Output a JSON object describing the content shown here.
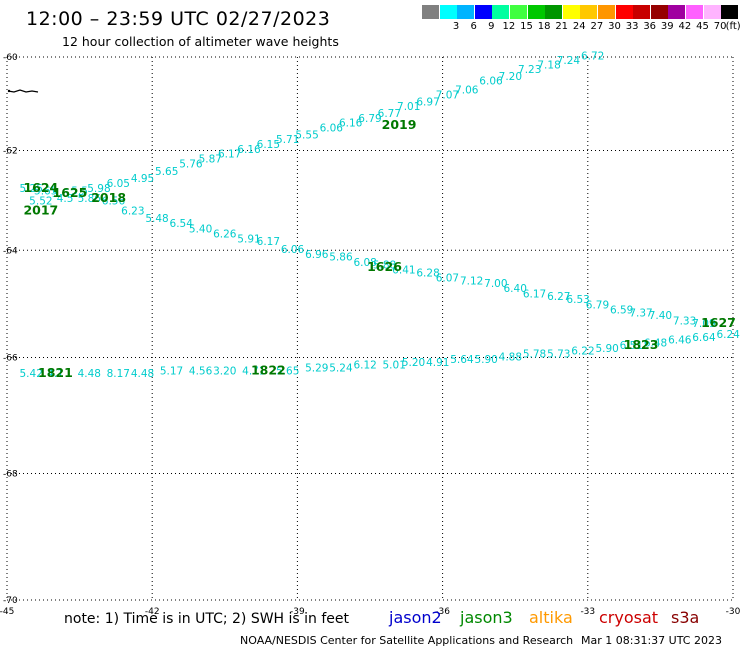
{
  "header": {
    "title": "12:00 – 23:59 UTC 02/27/2023",
    "subtitle": "12 hour collection of altimeter wave heights"
  },
  "legend": {
    "unit": "(ft)",
    "swatches": [
      {
        "label": "",
        "color": "#808080"
      },
      {
        "label": "3",
        "color": "#00ffff"
      },
      {
        "label": "6",
        "color": "#00b4ff"
      },
      {
        "label": "9",
        "color": "#0000ff"
      },
      {
        "label": "12",
        "color": "#00ffa0"
      },
      {
        "label": "15",
        "color": "#40ff40"
      },
      {
        "label": "18",
        "color": "#00c800"
      },
      {
        "label": "21",
        "color": "#009600"
      },
      {
        "label": "24",
        "color": "#ffff00"
      },
      {
        "label": "27",
        "color": "#ffc800"
      },
      {
        "label": "30",
        "color": "#ff9600"
      },
      {
        "label": "33",
        "color": "#ff0000"
      },
      {
        "label": "36",
        "color": "#c80000"
      },
      {
        "label": "39",
        "color": "#960000"
      },
      {
        "label": "42",
        "color": "#a000a0"
      },
      {
        "label": "45",
        "color": "#ff60ff"
      },
      {
        "label": "70",
        "color": "#ffb4ff"
      },
      {
        "label": "",
        "color": "#000000"
      }
    ]
  },
  "map": {
    "lat_labels": [
      "-60",
      "-62",
      "-64",
      "-66",
      "-68",
      "-70"
    ],
    "lon_labels": [
      "-45",
      "-42",
      "-39",
      "-36",
      "-33",
      "-30"
    ],
    "value_color": "#00cccc",
    "time_color": "#007800",
    "tracks": [
      {
        "name": "track-2019",
        "points": [
          {
            "lon": -44.5,
            "lat": -62.85,
            "swh": "5.25"
          },
          {
            "lon": -44.2,
            "lat": -62.9,
            "swh": "5.65"
          },
          {
            "lon": -43.9,
            "lat": -62.95,
            "swh": "5.6"
          },
          {
            "lon": -43.5,
            "lat": -62.9,
            "swh": "5.5"
          },
          {
            "lon": -43.1,
            "lat": -62.85,
            "swh": "5.98"
          },
          {
            "lon": -42.7,
            "lat": -62.75,
            "swh": "6.05"
          },
          {
            "lon": -42.2,
            "lat": -62.65,
            "swh": "4.95"
          },
          {
            "lon": -41.7,
            "lat": -62.5,
            "swh": "5.65"
          },
          {
            "lon": -41.2,
            "lat": -62.35,
            "swh": "5.76"
          },
          {
            "lon": -40.8,
            "lat": -62.25,
            "swh": "5.87"
          },
          {
            "lon": -40.4,
            "lat": -62.15,
            "swh": "6.17"
          },
          {
            "lon": -40.0,
            "lat": -62.05,
            "swh": "6.16"
          },
          {
            "lon": -39.6,
            "lat": -61.95,
            "swh": "6.15"
          },
          {
            "lon": -39.2,
            "lat": -61.85,
            "swh": "5.71"
          },
          {
            "lon": -38.8,
            "lat": -61.75,
            "swh": "5.55"
          },
          {
            "lon": -38.3,
            "lat": -61.6,
            "swh": "6.06"
          },
          {
            "lon": -37.9,
            "lat": -61.5,
            "swh": "6.16"
          },
          {
            "lon": -37.5,
            "lat": -61.4,
            "swh": "6.79"
          },
          {
            "lon": -37.1,
            "lat": -61.3,
            "swh": "6.77"
          },
          {
            "lon": -36.7,
            "lat": -61.15,
            "swh": "7.01"
          },
          {
            "lon": -36.3,
            "lat": -61.05,
            "swh": "6.97"
          },
          {
            "lon": -35.9,
            "lat": -60.9,
            "swh": "7.07"
          },
          {
            "lon": -35.5,
            "lat": -60.8,
            "swh": "7.06"
          },
          {
            "lon": -35.0,
            "lat": -60.6,
            "swh": "6.06"
          },
          {
            "lon": -34.6,
            "lat": -60.5,
            "swh": "7.20"
          },
          {
            "lon": -34.2,
            "lat": -60.35,
            "swh": "7.23"
          },
          {
            "lon": -33.8,
            "lat": -60.25,
            "swh": "7.18"
          },
          {
            "lon": -33.4,
            "lat": -60.15,
            "swh": "7.24"
          },
          {
            "lon": -32.9,
            "lat": -60.05,
            "swh": "6.72"
          }
        ],
        "times": [
          {
            "lon": -36.9,
            "lat": -61.55,
            "label": "2019"
          }
        ]
      },
      {
        "name": "track-2018",
        "points": [
          {
            "lon": -44.3,
            "lat": -63.1,
            "swh": "5.52"
          },
          {
            "lon": -43.8,
            "lat": -63.05,
            "swh": "4.5"
          },
          {
            "lon": -43.3,
            "lat": -63.05,
            "swh": "5.86"
          },
          {
            "lon": -42.8,
            "lat": -63.1,
            "swh": "6.56"
          },
          {
            "lon": -42.4,
            "lat": -63.3,
            "swh": "6.23"
          },
          {
            "lon": -41.9,
            "lat": -63.45,
            "swh": "5.48"
          },
          {
            "lon": -41.4,
            "lat": -63.55,
            "swh": "6.54"
          },
          {
            "lon": -41.0,
            "lat": -63.65,
            "swh": "5.40"
          },
          {
            "lon": -40.5,
            "lat": -63.75,
            "swh": "6.26"
          },
          {
            "lon": -40.0,
            "lat": -63.85,
            "swh": "5.91"
          },
          {
            "lon": -39.6,
            "lat": -63.9,
            "swh": "6.17"
          },
          {
            "lon": -39.1,
            "lat": -64.05,
            "swh": "6.06"
          },
          {
            "lon": -38.6,
            "lat": -64.15,
            "swh": "6.96"
          },
          {
            "lon": -38.1,
            "lat": -64.2,
            "swh": "5.86"
          },
          {
            "lon": -37.6,
            "lat": -64.3,
            "swh": "6.08"
          },
          {
            "lon": -37.2,
            "lat": -64.35,
            "swh": "5.88"
          },
          {
            "lon": -36.8,
            "lat": -64.45,
            "swh": "6.41"
          },
          {
            "lon": -36.3,
            "lat": -64.5,
            "swh": "6.28"
          },
          {
            "lon": -35.9,
            "lat": -64.6,
            "swh": "6.07"
          },
          {
            "lon": -35.4,
            "lat": -64.65,
            "swh": "7.12"
          },
          {
            "lon": -34.9,
            "lat": -64.7,
            "swh": "7.00"
          },
          {
            "lon": -34.5,
            "lat": -64.8,
            "swh": "6.40"
          },
          {
            "lon": -34.1,
            "lat": -64.9,
            "swh": "6.17"
          },
          {
            "lon": -33.6,
            "lat": -64.95,
            "swh": "6.27"
          },
          {
            "lon": -33.2,
            "lat": -65.0,
            "swh": "6.53"
          },
          {
            "lon": -32.8,
            "lat": -65.1,
            "swh": "6.79"
          },
          {
            "lon": -32.3,
            "lat": -65.2,
            "swh": "6.59"
          },
          {
            "lon": -31.9,
            "lat": -65.25,
            "swh": "7.37"
          },
          {
            "lon": -31.5,
            "lat": -65.3,
            "swh": "7.40"
          },
          {
            "lon": -31.0,
            "lat": -65.4,
            "swh": "7.33"
          },
          {
            "lon": -30.6,
            "lat": -65.45,
            "swh": "7.09"
          }
        ],
        "times": [
          {
            "lon": -44.3,
            "lat": -62.85,
            "label": "1624"
          },
          {
            "lon": -43.7,
            "lat": -62.95,
            "label": "1625"
          },
          {
            "lon": -42.9,
            "lat": -63.05,
            "label": "2018"
          },
          {
            "lon": -44.3,
            "lat": -63.3,
            "label": "2017"
          },
          {
            "lon": -37.2,
            "lat": -64.4,
            "label": "1626"
          },
          {
            "lon": -30.3,
            "lat": -65.45,
            "label": "1627"
          }
        ]
      },
      {
        "name": "track-1822",
        "points": [
          {
            "lon": -44.5,
            "lat": -66.35,
            "swh": "5.42"
          },
          {
            "lon": -44.0,
            "lat": -66.35,
            "swh": "4.1"
          },
          {
            "lon": -43.3,
            "lat": -66.35,
            "swh": "4.48"
          },
          {
            "lon": -42.7,
            "lat": -66.35,
            "swh": "8.17"
          },
          {
            "lon": -42.2,
            "lat": -66.35,
            "swh": "4.48"
          },
          {
            "lon": -41.6,
            "lat": -66.3,
            "swh": "5.17"
          },
          {
            "lon": -41.0,
            "lat": -66.3,
            "swh": "4.56"
          },
          {
            "lon": -40.5,
            "lat": -66.3,
            "swh": "3.20"
          },
          {
            "lon": -39.9,
            "lat": -66.3,
            "swh": "4.71"
          },
          {
            "lon": -39.2,
            "lat": -66.3,
            "swh": "5.65"
          },
          {
            "lon": -38.6,
            "lat": -66.25,
            "swh": "5.29"
          },
          {
            "lon": -38.1,
            "lat": -66.25,
            "swh": "5.24"
          },
          {
            "lon": -37.6,
            "lat": -66.2,
            "swh": "6.12"
          },
          {
            "lon": -37.0,
            "lat": -66.2,
            "swh": "5.01"
          },
          {
            "lon": -36.6,
            "lat": -66.15,
            "swh": "5.20"
          },
          {
            "lon": -36.1,
            "lat": -66.15,
            "swh": "4.91"
          },
          {
            "lon": -35.6,
            "lat": -66.1,
            "swh": "5.64"
          },
          {
            "lon": -35.1,
            "lat": -66.1,
            "swh": "5.90"
          },
          {
            "lon": -34.6,
            "lat": -66.05,
            "swh": "4.88"
          },
          {
            "lon": -34.1,
            "lat": -66.0,
            "swh": "5.78"
          },
          {
            "lon": -33.6,
            "lat": -66.0,
            "swh": "5.73"
          },
          {
            "lon": -33.1,
            "lat": -65.95,
            "swh": "6.22"
          },
          {
            "lon": -32.6,
            "lat": -65.9,
            "swh": "5.90"
          },
          {
            "lon": -32.1,
            "lat": -65.85,
            "swh": "6.51"
          },
          {
            "lon": -31.6,
            "lat": -65.8,
            "swh": "6.48"
          },
          {
            "lon": -31.1,
            "lat": -65.75,
            "swh": "6.46"
          },
          {
            "lon": -30.6,
            "lat": -65.7,
            "swh": "6.64"
          },
          {
            "lon": -30.1,
            "lat": -65.65,
            "swh": "6.24"
          }
        ],
        "times": [
          {
            "lon": -44.0,
            "lat": -66.35,
            "label": "1821"
          },
          {
            "lon": -39.6,
            "lat": -66.3,
            "label": "1822"
          },
          {
            "lon": -31.9,
            "lat": -65.85,
            "label": "1823"
          }
        ]
      }
    ]
  },
  "footer": {
    "note": "note:  1) Time is in UTC;  2) SWH is in feet",
    "satellites": [
      {
        "name": "jason2",
        "color": "#0000cc"
      },
      {
        "name": "jason3",
        "color": "#008800"
      },
      {
        "name": "altika",
        "color": "#ff9900"
      },
      {
        "name": "cryosat",
        "color": "#cc0000"
      },
      {
        "name": "s3a",
        "color": "#880000"
      }
    ],
    "credit": "NOAA/NESDIS Center for Satellite Applications and Research",
    "date": "Mar  1 08:31:37 UTC 2023"
  }
}
